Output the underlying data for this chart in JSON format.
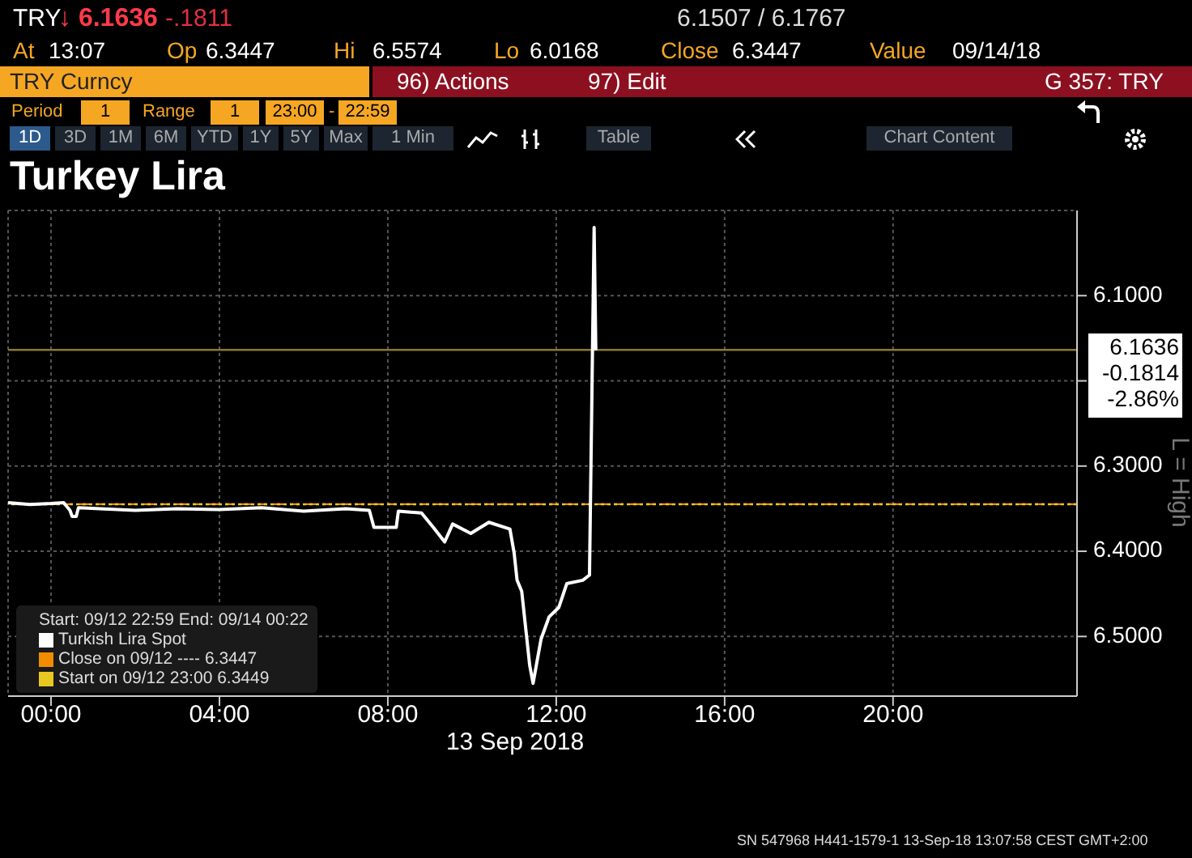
{
  "chart_data": {
    "type": "line",
    "title": "Turkey Lira",
    "xlabel": "13 Sep 2018",
    "ylabel": "L = High",
    "legend_title": "Start: 09/12 22:59 End: 09/14 00:22",
    "legend": "bottom left",
    "grid": true,
    "xlim": [
      -1.02,
      24.37
    ],
    "xticks": [
      {
        "value": 0,
        "label": "00:00"
      },
      {
        "value": 4,
        "label": "04:00"
      },
      {
        "value": 8,
        "label": "08:00"
      },
      {
        "value": 12,
        "label": "12:00"
      },
      {
        "value": 16,
        "label": "16:00"
      },
      {
        "value": 20,
        "label": "20:00"
      }
    ],
    "ylim": [
      6.57,
      6.0
    ],
    "yticks": [
      {
        "value": 6.1,
        "label": "6.1000"
      },
      {
        "value": 6.2,
        "label": null
      },
      {
        "value": 6.3,
        "label": "6.3000"
      },
      {
        "value": 6.4,
        "label": "6.4000"
      },
      {
        "value": 6.5,
        "label": "6.5000"
      }
    ],
    "series": [
      {
        "name": "Turkish Lira Spot",
        "color": "#ffffff",
        "x": [
          -1.02,
          -0.5,
          0,
          0.3,
          0.45,
          0.5,
          0.6,
          0.65,
          2,
          3,
          4,
          5,
          6,
          7,
          7.56,
          7.67,
          8.2,
          8.25,
          8.8,
          9.08,
          9.35,
          9.54,
          9.97,
          10.4,
          10.9,
          11.0,
          11.07,
          11.18,
          11.37,
          11.45,
          11.64,
          11.83,
          12.06,
          12.25,
          12.63,
          12.79,
          12.9,
          12.94
        ],
        "values": [
          6.343,
          6.345,
          6.344,
          6.343,
          6.352,
          6.359,
          6.359,
          6.349,
          6.352,
          6.35,
          6.351,
          6.349,
          6.353,
          6.35,
          6.352,
          6.372,
          6.372,
          6.353,
          6.355,
          6.372,
          6.389,
          6.368,
          6.379,
          6.366,
          6.374,
          6.402,
          6.434,
          6.447,
          6.534,
          6.555,
          6.503,
          6.477,
          6.466,
          6.438,
          6.434,
          6.428,
          6.02,
          6.164
        ]
      }
    ],
    "ref_lines": [
      {
        "axis": "y",
        "value": 6.3447,
        "label": "Close on 09/12 ---- 6.3447",
        "color": "#f08c00",
        "line_style": "dashed"
      },
      {
        "axis": "y",
        "value": 6.3449,
        "label": "Start on 09/12 23:00 6.3449",
        "color": "#e8c820",
        "line_style": "dotted"
      },
      {
        "axis": "y",
        "value": 6.1636,
        "color": "#8a7a30",
        "line_style": "solid"
      }
    ],
    "annotations": [
      "TRY",
      "↓ 6.1636",
      "-.1811",
      "6.1507 / 6.1767",
      "At",
      "13:07",
      "Op",
      "6.3447",
      "Hi",
      "6.5574",
      "Lo",
      "6.0168",
      "Close",
      "6.3447",
      "Value",
      "09/14/18",
      "TRY Curncy",
      "96) Actions",
      "97) Edit",
      "G 357: TRY",
      "Period",
      "1",
      "Range",
      "1",
      "23:00",
      "-",
      "22:59",
      "1D",
      "3D",
      "1M",
      "6M",
      "YTD",
      "1Y",
      "5Y",
      "Max",
      "1 Min",
      "Table",
      "Chart Content",
      "SN 547968 H441-1579-1 13-Sep-18 13:07:58 CEST GMT+2:00",
      "6.1636 -0.1814 -2.86%"
    ]
  }
}
